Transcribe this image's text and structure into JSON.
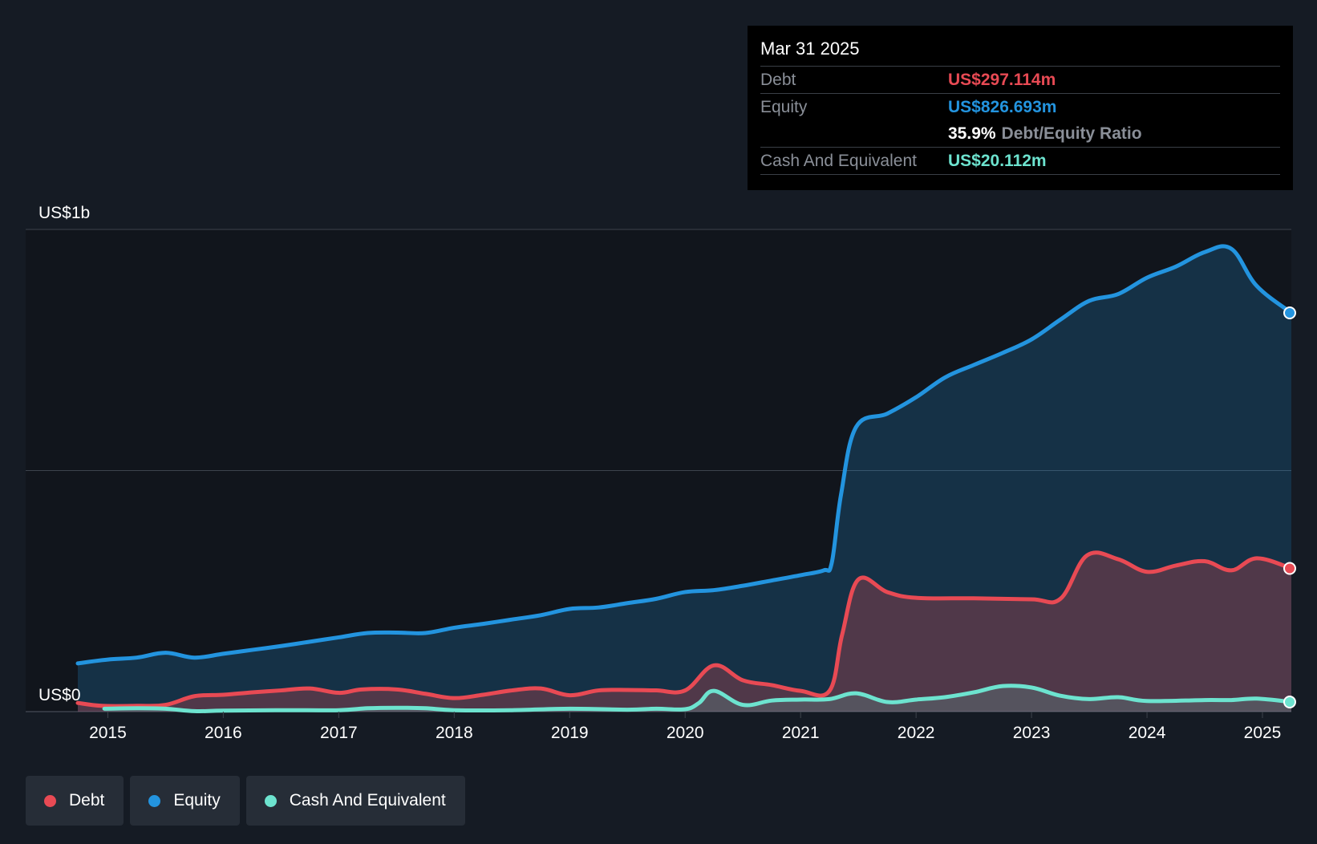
{
  "colors": {
    "background": "#151b24",
    "plot_background": "#11151c",
    "debt": "#e84a54",
    "equity": "#2394df",
    "cash": "#6de3cf",
    "grid": "#3d434c"
  },
  "tooltip": {
    "date": "Mar 31 2025",
    "debt_label": "Debt",
    "debt_value": "US$297.114m",
    "equity_label": "Equity",
    "equity_value": "US$826.693m",
    "ratio_value": "35.9%",
    "ratio_label": "Debt/Equity Ratio",
    "cash_label": "Cash And Equivalent",
    "cash_value": "US$20.112m"
  },
  "legend": [
    {
      "label": "Debt",
      "color": "#e84a54"
    },
    {
      "label": "Equity",
      "color": "#2394df"
    },
    {
      "label": "Cash And Equivalent",
      "color": "#6de3cf"
    }
  ],
  "chart_data": {
    "type": "area",
    "y_unit": "US$ millions",
    "ylim": [
      0,
      1000
    ],
    "xlim": [
      2014.74,
      2025.25
    ],
    "y_tick_labels": [
      {
        "value": 1000,
        "label": "US$1b"
      },
      {
        "value": 0,
        "label": "US$0"
      }
    ],
    "x_ticks": [
      2015,
      2016,
      2017,
      2018,
      2019,
      2020,
      2021,
      2022,
      2023,
      2024,
      2025
    ],
    "x_tick_labels": [
      "2015",
      "2016",
      "2017",
      "2018",
      "2019",
      "2020",
      "2021",
      "2022",
      "2023",
      "2024",
      "2025"
    ],
    "grid": true,
    "legend_position": "bottom-left",
    "series": [
      {
        "name": "Equity",
        "color": "#2394df",
        "x": [
          2014.74,
          2015.0,
          2015.25,
          2015.5,
          2015.75,
          2016.0,
          2016.25,
          2016.5,
          2016.75,
          2017.0,
          2017.25,
          2017.5,
          2017.75,
          2018.0,
          2018.25,
          2018.5,
          2018.75,
          2019.0,
          2019.25,
          2019.5,
          2019.75,
          2020.0,
          2020.25,
          2020.5,
          2020.75,
          2021.0,
          2021.2,
          2021.27,
          2021.35,
          2021.48,
          2021.75,
          2022.0,
          2022.25,
          2022.5,
          2022.75,
          2023.0,
          2023.25,
          2023.5,
          2023.75,
          2024.0,
          2024.25,
          2024.5,
          2024.73,
          2024.95,
          2025.25
        ],
        "values": [
          100,
          108,
          112,
          122,
          112,
          120,
          128,
          136,
          145,
          154,
          163,
          164,
          163,
          174,
          182,
          191,
          200,
          213,
          216,
          225,
          234,
          248,
          252,
          261,
          272,
          283,
          293,
          309,
          450,
          590,
          618,
          652,
          693,
          719,
          744,
          772,
          813,
          852,
          866,
          900,
          923,
          953,
          960,
          883,
          827
        ]
      },
      {
        "name": "Debt",
        "color": "#e84a54",
        "x": [
          2014.74,
          2014.95,
          2015.25,
          2015.5,
          2015.75,
          2016.0,
          2016.25,
          2016.5,
          2016.75,
          2017.0,
          2017.2,
          2017.5,
          2017.75,
          2018.0,
          2018.25,
          2018.5,
          2018.75,
          2019.0,
          2019.25,
          2019.5,
          2019.75,
          2020.0,
          2020.25,
          2020.5,
          2020.75,
          2021.0,
          2021.25,
          2021.36,
          2021.5,
          2021.75,
          2022.0,
          2022.5,
          2023.0,
          2023.25,
          2023.48,
          2023.75,
          2024.0,
          2024.25,
          2024.5,
          2024.73,
          2024.95,
          2025.25
        ],
        "values": [
          18,
          12,
          12,
          14,
          32,
          35,
          40,
          44,
          48,
          39,
          46,
          46,
          37,
          28,
          35,
          44,
          48,
          34,
          44,
          45,
          44,
          44,
          96,
          65,
          55,
          43,
          43,
          160,
          274,
          248,
          236,
          235,
          233,
          234,
          324,
          316,
          290,
          303,
          312,
          293,
          318,
          297
        ]
      },
      {
        "name": "Cash And Equivalent",
        "color": "#6de3cf",
        "x": [
          2014.97,
          2015.25,
          2015.5,
          2015.75,
          2016.0,
          2016.5,
          2017.0,
          2017.25,
          2017.5,
          2017.75,
          2018.0,
          2018.5,
          2019.0,
          2019.5,
          2019.75,
          2020.0,
          2020.12,
          2020.25,
          2020.5,
          2020.75,
          2021.0,
          2021.25,
          2021.48,
          2021.75,
          2022.0,
          2022.25,
          2022.5,
          2022.75,
          2023.0,
          2023.25,
          2023.5,
          2023.75,
          2024.0,
          2024.5,
          2024.73,
          2024.95,
          2025.25
        ],
        "values": [
          6,
          7,
          6,
          1,
          2,
          3,
          3,
          7,
          8,
          7,
          3,
          3,
          6,
          4,
          6,
          5,
          18,
          43,
          14,
          23,
          25,
          26,
          38,
          20,
          25,
          30,
          40,
          53,
          50,
          33,
          26,
          30,
          22,
          24,
          24,
          27,
          20
        ]
      }
    ]
  }
}
